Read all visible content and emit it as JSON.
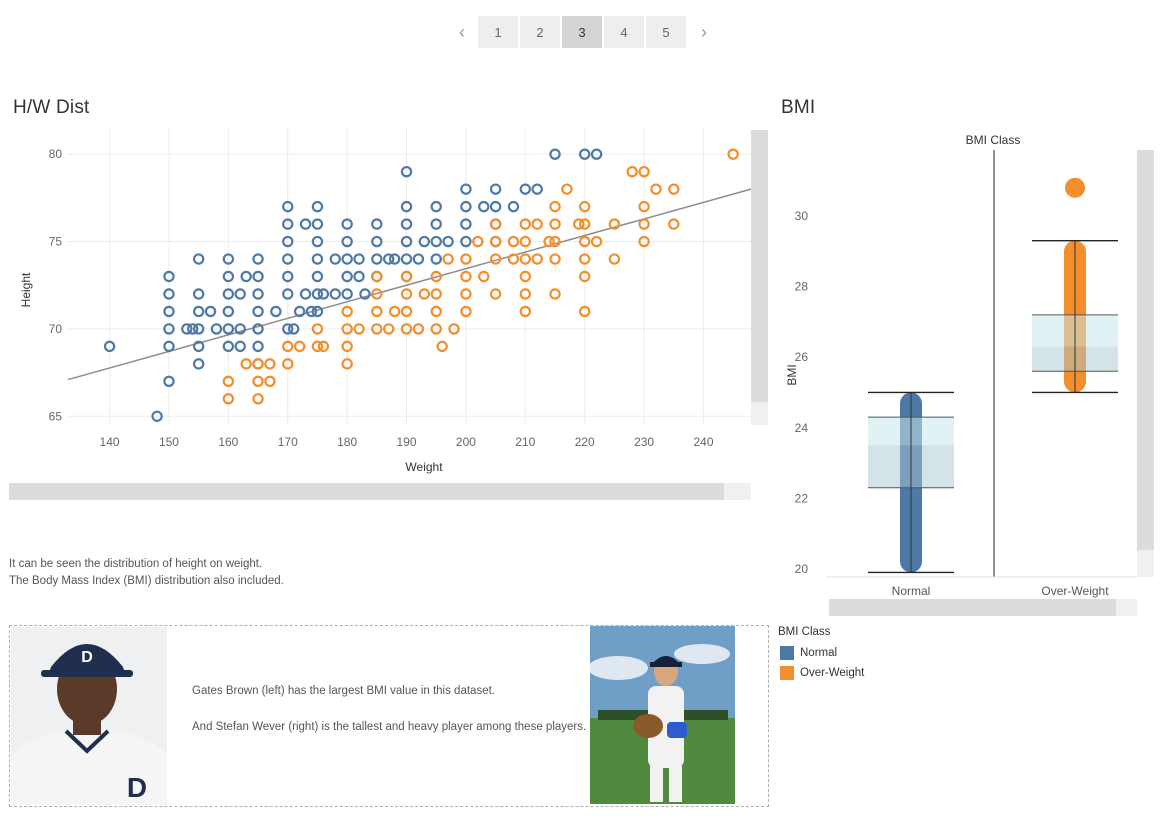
{
  "pagination": {
    "prev_icon": "chevron-left",
    "next_icon": "chevron-right",
    "pages": [
      "1",
      "2",
      "3",
      "4",
      "5"
    ],
    "active_index": 2
  },
  "colors": {
    "normal": "#4e79a7",
    "overweight": "#f28e2b",
    "trend": "#8c8c8c",
    "grid": "#ececec"
  },
  "scatter": {
    "title": "H/W Dist",
    "chart_data": {
      "type": "scatter",
      "xlabel": "Weight",
      "ylabel": "Height",
      "xlim": [
        133,
        248
      ],
      "ylim": [
        64.5,
        81.5
      ],
      "x_ticks": [
        140,
        150,
        160,
        170,
        180,
        190,
        200,
        210,
        220,
        230,
        240
      ],
      "y_ticks": [
        65,
        70,
        75,
        80
      ],
      "trendline": {
        "x": [
          133,
          248
        ],
        "y": [
          67.1,
          78.0
        ]
      },
      "series": [
        {
          "name": "Normal",
          "points": [
            [
              140,
              69
            ],
            [
              148,
              65
            ],
            [
              150,
              67
            ],
            [
              150,
              69
            ],
            [
              150,
              70
            ],
            [
              150,
              71
            ],
            [
              150,
              72
            ],
            [
              150,
              73
            ],
            [
              153,
              70
            ],
            [
              154,
              70
            ],
            [
              155,
              68
            ],
            [
              155,
              69
            ],
            [
              155,
              70
            ],
            [
              155,
              71
            ],
            [
              155,
              72
            ],
            [
              155,
              74
            ],
            [
              157,
              71
            ],
            [
              158,
              70
            ],
            [
              160,
              69
            ],
            [
              160,
              70
            ],
            [
              160,
              71
            ],
            [
              160,
              72
            ],
            [
              160,
              73
            ],
            [
              160,
              74
            ],
            [
              162,
              69
            ],
            [
              162,
              70
            ],
            [
              162,
              72
            ],
            [
              163,
              73
            ],
            [
              165,
              68
            ],
            [
              165,
              69
            ],
            [
              165,
              70
            ],
            [
              165,
              71
            ],
            [
              165,
              72
            ],
            [
              165,
              73
            ],
            [
              165,
              74
            ],
            [
              168,
              71
            ],
            [
              170,
              70
            ],
            [
              170,
              72
            ],
            [
              170,
              73
            ],
            [
              170,
              74
            ],
            [
              170,
              75
            ],
            [
              170,
              76
            ],
            [
              170,
              77
            ],
            [
              171,
              70
            ],
            [
              172,
              71
            ],
            [
              173,
              72
            ],
            [
              173,
              76
            ],
            [
              174,
              71
            ],
            [
              175,
              71
            ],
            [
              175,
              72
            ],
            [
              175,
              73
            ],
            [
              175,
              74
            ],
            [
              175,
              75
            ],
            [
              175,
              76
            ],
            [
              175,
              77
            ],
            [
              176,
              72
            ],
            [
              178,
              72
            ],
            [
              178,
              74
            ],
            [
              180,
              72
            ],
            [
              180,
              73
            ],
            [
              180,
              74
            ],
            [
              180,
              75
            ],
            [
              180,
              76
            ],
            [
              182,
              73
            ],
            [
              182,
              74
            ],
            [
              183,
              72
            ],
            [
              185,
              73
            ],
            [
              185,
              74
            ],
            [
              185,
              75
            ],
            [
              185,
              76
            ],
            [
              187,
              74
            ],
            [
              188,
              74
            ],
            [
              190,
              73
            ],
            [
              190,
              74
            ],
            [
              190,
              75
            ],
            [
              190,
              76
            ],
            [
              190,
              77
            ],
            [
              190,
              79
            ],
            [
              192,
              74
            ],
            [
              193,
              75
            ],
            [
              195,
              74
            ],
            [
              195,
              75
            ],
            [
              195,
              76
            ],
            [
              195,
              77
            ],
            [
              197,
              75
            ],
            [
              200,
              75
            ],
            [
              200,
              76
            ],
            [
              200,
              77
            ],
            [
              200,
              78
            ],
            [
              203,
              77
            ],
            [
              205,
              75
            ],
            [
              205,
              76
            ],
            [
              205,
              77
            ],
            [
              205,
              78
            ],
            [
              208,
              77
            ],
            [
              210,
              78
            ],
            [
              212,
              78
            ],
            [
              215,
              80
            ],
            [
              220,
              80
            ],
            [
              222,
              80
            ]
          ]
        },
        {
          "name": "Over-Weight",
          "points": [
            [
              160,
              66
            ],
            [
              160,
              67
            ],
            [
              163,
              68
            ],
            [
              165,
              66
            ],
            [
              165,
              67
            ],
            [
              165,
              68
            ],
            [
              167,
              67
            ],
            [
              167,
              68
            ],
            [
              170,
              68
            ],
            [
              170,
              69
            ],
            [
              172,
              69
            ],
            [
              175,
              69
            ],
            [
              175,
              70
            ],
            [
              176,
              69
            ],
            [
              180,
              68
            ],
            [
              180,
              69
            ],
            [
              180,
              70
            ],
            [
              180,
              71
            ],
            [
              182,
              70
            ],
            [
              185,
              70
            ],
            [
              185,
              71
            ],
            [
              185,
              72
            ],
            [
              185,
              73
            ],
            [
              187,
              70
            ],
            [
              188,
              71
            ],
            [
              190,
              70
            ],
            [
              190,
              71
            ],
            [
              190,
              72
            ],
            [
              190,
              73
            ],
            [
              192,
              70
            ],
            [
              193,
              72
            ],
            [
              195,
              70
            ],
            [
              195,
              71
            ],
            [
              195,
              72
            ],
            [
              195,
              73
            ],
            [
              196,
              69
            ],
            [
              197,
              74
            ],
            [
              198,
              70
            ],
            [
              200,
              71
            ],
            [
              200,
              72
            ],
            [
              200,
              73
            ],
            [
              200,
              74
            ],
            [
              202,
              75
            ],
            [
              203,
              73
            ],
            [
              205,
              72
            ],
            [
              205,
              74
            ],
            [
              205,
              75
            ],
            [
              205,
              76
            ],
            [
              208,
              74
            ],
            [
              208,
              75
            ],
            [
              210,
              71
            ],
            [
              210,
              72
            ],
            [
              210,
              73
            ],
            [
              210,
              74
            ],
            [
              210,
              75
            ],
            [
              210,
              76
            ],
            [
              212,
              74
            ],
            [
              212,
              76
            ],
            [
              214,
              75
            ],
            [
              215,
              72
            ],
            [
              215,
              74
            ],
            [
              215,
              75
            ],
            [
              215,
              76
            ],
            [
              215,
              77
            ],
            [
              217,
              78
            ],
            [
              219,
              76
            ],
            [
              220,
              71
            ],
            [
              220,
              73
            ],
            [
              220,
              74
            ],
            [
              220,
              75
            ],
            [
              220,
              76
            ],
            [
              220,
              77
            ],
            [
              222,
              75
            ],
            [
              225,
              74
            ],
            [
              225,
              76
            ],
            [
              228,
              79
            ],
            [
              230,
              75
            ],
            [
              230,
              76
            ],
            [
              230,
              77
            ],
            [
              230,
              79
            ],
            [
              232,
              78
            ],
            [
              235,
              76
            ],
            [
              235,
              78
            ],
            [
              245,
              80
            ]
          ]
        }
      ]
    }
  },
  "bmi": {
    "title": "BMI",
    "chart_data": {
      "type": "box",
      "column_header": "BMI Class",
      "ylabel": "BMI",
      "ylim": [
        19.8,
        31.7
      ],
      "y_ticks": [
        20,
        22,
        24,
        26,
        28,
        30
      ],
      "categories": [
        "Normal",
        "Over-Weight"
      ],
      "boxes": [
        {
          "name": "Normal",
          "min": 19.9,
          "q1": 22.3,
          "median": 23.5,
          "q3": 24.3,
          "max": 25.0,
          "points_from": 19.9,
          "points_to": 25.0,
          "outliers": []
        },
        {
          "name": "Over-Weight",
          "min": 25.0,
          "q1": 25.6,
          "median": 26.3,
          "q3": 27.2,
          "max": 29.3,
          "points_from": 25.0,
          "points_to": 29.3,
          "outliers": [
            30.8
          ]
        }
      ]
    }
  },
  "description": {
    "line1": "It can be seen the distribution of height on weight.",
    "line2": "The Body Mass Index (BMI) distribution also included."
  },
  "info": {
    "para1": "Gates Brown (left) has the largest BMI value in this dataset.",
    "para2": "And Stefan Wever (right) is the tallest and heavy player among these players."
  },
  "legend": {
    "title": "BMI Class",
    "items": [
      {
        "label": "Normal",
        "color": "#4e79a7"
      },
      {
        "label": "Over-Weight",
        "color": "#f28e2b"
      }
    ]
  }
}
